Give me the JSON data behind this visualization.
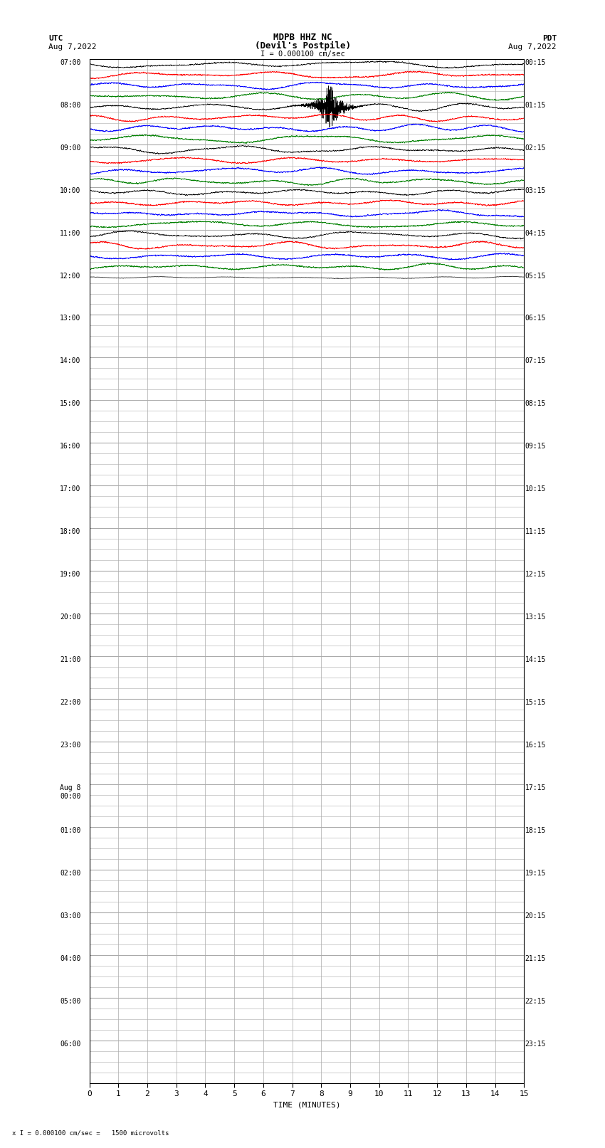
{
  "title_line1": "MDPB HHZ NC",
  "title_line2": "(Devil's Postpile)",
  "title_scale": "I = 0.000100 cm/sec",
  "left_header_line1": "UTC",
  "left_header_line2": "Aug 7,2022",
  "right_header_line1": "PDT",
  "right_header_line2": "Aug 7,2022",
  "footer_note": "x I = 0.000100 cm/sec =   1500 microvolts",
  "xlabel": "TIME (MINUTES)",
  "bg_color": "#ffffff",
  "grid_color": "#aaaaaa",
  "trace_colors": [
    "black",
    "red",
    "blue",
    "green"
  ],
  "utc_labels": [
    "07:00",
    "08:00",
    "09:00",
    "10:00",
    "11:00",
    "12:00",
    "13:00",
    "14:00",
    "15:00",
    "16:00",
    "17:00",
    "18:00",
    "19:00",
    "20:00",
    "21:00",
    "22:00",
    "23:00",
    "Aug 8\n00:00",
    "01:00",
    "02:00",
    "03:00",
    "04:00",
    "05:00",
    "06:00"
  ],
  "pdt_labels": [
    "00:15",
    "01:15",
    "02:15",
    "03:15",
    "04:15",
    "05:15",
    "06:15",
    "07:15",
    "08:15",
    "09:15",
    "10:15",
    "11:15",
    "12:15",
    "13:15",
    "14:15",
    "15:15",
    "16:15",
    "17:15",
    "18:15",
    "19:15",
    "20:15",
    "21:15",
    "22:15",
    "23:15"
  ],
  "num_hour_rows": 24,
  "subrows_per_hour": 4,
  "xmin": 0,
  "xmax": 15,
  "active_hours": 5,
  "trace_amplitude": 0.38,
  "noise_amplitude": 0.06,
  "seismic_event_hour": 1,
  "seismic_event_subrow": 0,
  "seismic_event_minute": 8.3
}
